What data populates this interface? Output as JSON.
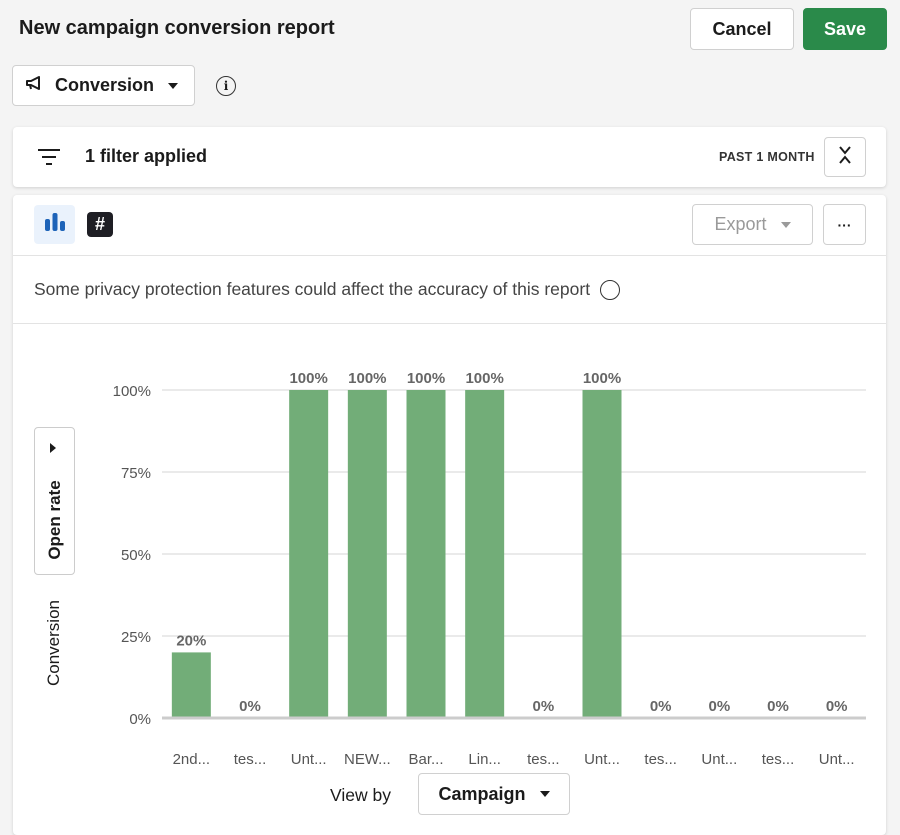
{
  "header": {
    "title": "New campaign conversion report",
    "cancel_label": "Cancel",
    "save_label": "Save"
  },
  "metric_selector": {
    "label": "Conversion"
  },
  "filter_bar": {
    "label": "1 filter applied",
    "date_range": "PAST 1 MONTH"
  },
  "toolbar": {
    "export_label": "Export",
    "more_label": "···"
  },
  "notice": {
    "text": "Some privacy protection features could affect the accuracy of this report"
  },
  "y_axis_tabs": {
    "open_rate": "Open rate",
    "conversion": "Conversion"
  },
  "view_by": {
    "label": "View by",
    "value": "Campaign"
  },
  "colors": {
    "bar": "#72ad78",
    "save": "#2a8a4a",
    "chart_icon": "#1d63b8"
  },
  "chart_data": {
    "type": "bar",
    "categories": [
      "2nd...",
      "tes...",
      "Unt...",
      "NEW...",
      "Bar...",
      "Lin...",
      "tes...",
      "Unt...",
      "tes...",
      "Unt...",
      "tes...",
      "Unt..."
    ],
    "values": [
      20,
      0,
      100,
      100,
      100,
      100,
      0,
      100,
      0,
      0,
      0,
      0
    ],
    "data_labels": [
      "20%",
      "0%",
      "100%",
      "100%",
      "100%",
      "100%",
      "0%",
      "100%",
      "0%",
      "0%",
      "0%",
      "0%"
    ],
    "yticks": [
      "0%",
      "25%",
      "50%",
      "75%",
      "100%"
    ],
    "ytick_values": [
      0,
      25,
      50,
      75,
      100
    ],
    "ylabel": "Conversion",
    "xlabel": "View by Campaign",
    "ylim": [
      0,
      100
    ],
    "grid": true
  }
}
